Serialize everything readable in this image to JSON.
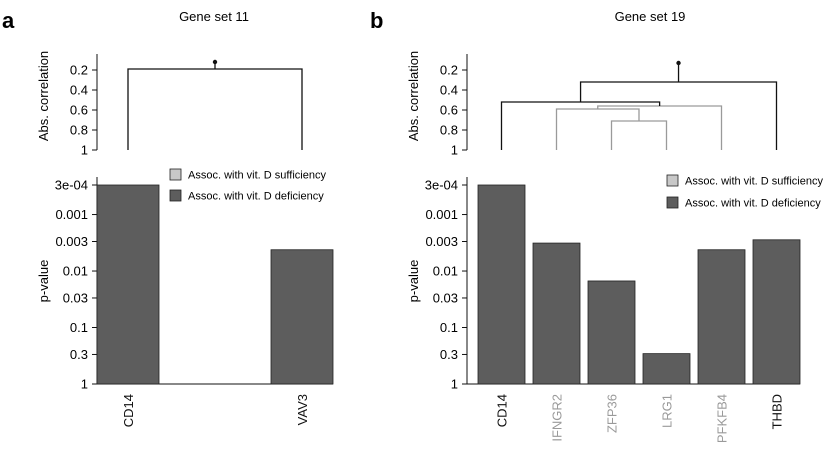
{
  "chart_data": [
    {
      "panel": "a",
      "type": "bar",
      "title": "Gene set 11",
      "categories": [
        "CD14",
        "VAV3"
      ],
      "category_colors": [
        "#111111",
        "#111111"
      ],
      "ylabel": "p-value",
      "y_scale": "log-inverted",
      "y_ticks": [
        "3e-04",
        "0.001",
        "0.003",
        "0.01",
        "0.03",
        "0.1",
        "0.3",
        "1"
      ],
      "ylim": [
        0.0003,
        1
      ],
      "values": [
        0.0003,
        0.0042
      ],
      "bar_colors": [
        "#5d5d5d",
        "#5d5d5d"
      ],
      "dendrogram": {
        "ylabel": "Abs. correlation",
        "y_ticks": [
          "0.2",
          "0.4",
          "0.6",
          "0.8",
          "1"
        ],
        "ylim": [
          0.13,
          1
        ],
        "merges": [
          {
            "left": 0,
            "right": 1,
            "height": 0.19,
            "color": "#111111"
          }
        ],
        "root_tail": 0.12
      },
      "legend": {
        "position": "top-right",
        "items": [
          {
            "label": "Assoc. with vit. D sufficiency",
            "color": "#c8c8c8"
          },
          {
            "label": "Assoc. with vit. D deficiency",
            "color": "#5d5d5d"
          }
        ]
      }
    },
    {
      "panel": "b",
      "type": "bar",
      "title": "Gene set 19",
      "categories": [
        "CD14",
        "IFNGR2",
        "ZFP36",
        "LRG1",
        "PFKFB4",
        "THBD"
      ],
      "category_colors": [
        "#111111",
        "#9a9a9a",
        "#9a9a9a",
        "#9a9a9a",
        "#9a9a9a",
        "#111111"
      ],
      "ylabel": "p-value",
      "y_scale": "log-inverted",
      "y_ticks": [
        "3e-04",
        "0.001",
        "0.003",
        "0.01",
        "0.03",
        "0.1",
        "0.3",
        "1"
      ],
      "ylim": [
        0.0003,
        1
      ],
      "values": [
        0.0003,
        0.0032,
        0.015,
        0.29,
        0.0042,
        0.0028
      ],
      "bar_colors": [
        "#5d5d5d",
        "#5d5d5d",
        "#5d5d5d",
        "#5d5d5d",
        "#5d5d5d",
        "#5d5d5d"
      ],
      "dendrogram": {
        "ylabel": "Abs. correlation",
        "y_ticks": [
          "0.2",
          "0.4",
          "0.6",
          "0.8",
          "1"
        ],
        "ylim": [
          0.13,
          1
        ],
        "merges": [
          {
            "left": 2,
            "right": 3,
            "height": 0.71,
            "color": "#9a9a9a"
          },
          {
            "left": 1,
            "right": "m0",
            "height": 0.59,
            "color": "#9a9a9a"
          },
          {
            "left": "m1",
            "right": 4,
            "height": 0.56,
            "color": "#9a9a9a"
          },
          {
            "left": 0,
            "right": "m2",
            "height": 0.52,
            "color": "#111111"
          },
          {
            "left": "m3",
            "right": 5,
            "height": 0.32,
            "color": "#111111"
          }
        ],
        "root_tail": 0.13
      },
      "legend": {
        "position": "top-right",
        "items": [
          {
            "label": "Assoc. with vit. D sufficiency",
            "color": "#c8c8c8"
          },
          {
            "label": "Assoc. with vit. D deficiency",
            "color": "#5d5d5d"
          }
        ]
      }
    }
  ],
  "panels": [
    {
      "letter": "a",
      "title": "Gene set 11",
      "ylabel_top": "Abs. correlation",
      "ylabel_bottom": "p-value"
    },
    {
      "letter": "b",
      "title": "Gene set 19",
      "ylabel_top": "Abs. correlation",
      "ylabel_bottom": "p-value"
    }
  ]
}
